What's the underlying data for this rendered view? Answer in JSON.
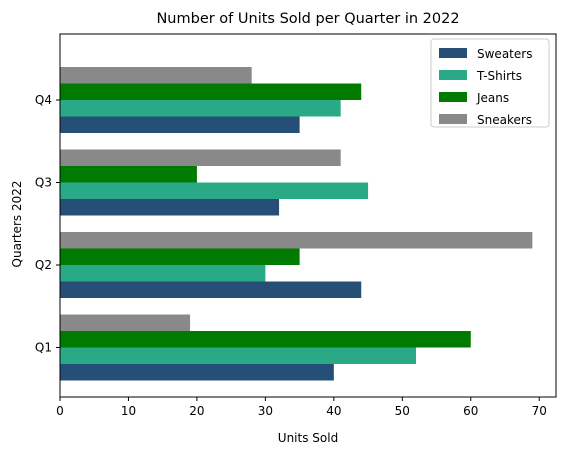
{
  "chart_data": {
    "type": "bar",
    "orientation": "horizontal",
    "title": "Number of Units Sold per Quarter in 2022",
    "xlabel": "Units Sold",
    "ylabel": "Quarters 2022",
    "categories": [
      "Q1",
      "Q2",
      "Q3",
      "Q4"
    ],
    "xlim": [
      0,
      72.45
    ],
    "xticks": [
      "0",
      "10",
      "20",
      "30",
      "40",
      "50",
      "60",
      "70"
    ],
    "grid": false,
    "legend_position": "top-right",
    "series": [
      {
        "name": "Sweaters",
        "color": "#264f78",
        "values": [
          40,
          44,
          32,
          35
        ]
      },
      {
        "name": "T-Shirts",
        "color": "#2aa987",
        "values": [
          52,
          30,
          45,
          41
        ]
      },
      {
        "name": "Jeans",
        "color": "#007a00",
        "values": [
          60,
          35,
          20,
          44
        ]
      },
      {
        "name": "Sneakers",
        "color": "#898989",
        "values": [
          19,
          69,
          41,
          28
        ]
      }
    ]
  }
}
